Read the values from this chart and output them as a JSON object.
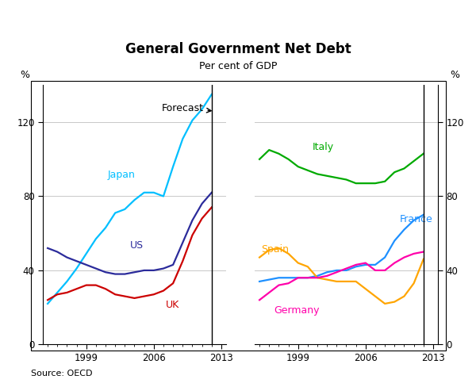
{
  "title": "General Government Net Debt",
  "subtitle": "Per cent of GDP",
  "ylabel_left": "%",
  "ylabel_right": "%",
  "source": "Source: OECD",
  "ylim": [
    0,
    140
  ],
  "yticks": [
    0,
    40,
    80,
    120
  ],
  "forecast_label": "Forecast",
  "left_panel": {
    "years": [
      1995,
      1996,
      1997,
      1998,
      1999,
      2000,
      2001,
      2002,
      2003,
      2004,
      2005,
      2006,
      2007,
      2008,
      2009,
      2010,
      2011,
      2012
    ],
    "Japan": [
      22,
      28,
      34,
      41,
      49,
      57,
      63,
      71,
      73,
      78,
      82,
      82,
      80,
      96,
      111,
      121,
      127,
      135
    ],
    "US": [
      52,
      50,
      47,
      45,
      43,
      41,
      39,
      38,
      38,
      39,
      40,
      40,
      41,
      43,
      55,
      67,
      76,
      82
    ],
    "UK": [
      24,
      27,
      28,
      30,
      32,
      32,
      30,
      27,
      26,
      25,
      26,
      27,
      29,
      33,
      45,
      59,
      68,
      74
    ]
  },
  "right_panel": {
    "years": [
      1995,
      1996,
      1997,
      1998,
      1999,
      2000,
      2001,
      2002,
      2003,
      2004,
      2005,
      2006,
      2007,
      2008,
      2009,
      2010,
      2011,
      2012
    ],
    "Italy": [
      100,
      105,
      103,
      100,
      96,
      94,
      92,
      91,
      90,
      89,
      87,
      87,
      87,
      88,
      93,
      95,
      99,
      103
    ],
    "France": [
      34,
      35,
      36,
      36,
      36,
      36,
      37,
      39,
      40,
      40,
      42,
      43,
      43,
      47,
      56,
      62,
      67,
      70
    ],
    "Spain": [
      47,
      51,
      52,
      49,
      44,
      42,
      36,
      35,
      34,
      34,
      34,
      30,
      26,
      22,
      23,
      26,
      33,
      46
    ],
    "Germany": [
      24,
      28,
      32,
      33,
      36,
      36,
      36,
      37,
      39,
      41,
      43,
      44,
      40,
      40,
      44,
      47,
      49,
      50
    ]
  },
  "colors": {
    "Japan": "#00BFFF",
    "US": "#2B2B9B",
    "UK": "#CC0000",
    "Italy": "#00AA00",
    "France": "#1E90FF",
    "Spain": "#FFA500",
    "Germany": "#FF00AA"
  }
}
